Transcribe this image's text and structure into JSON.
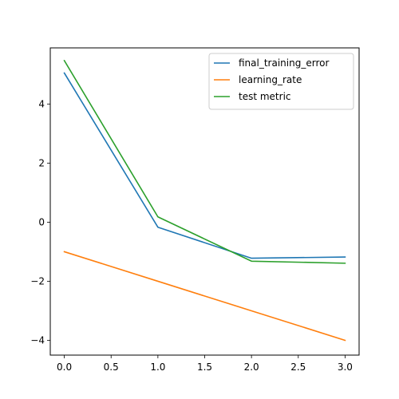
{
  "chart_data": {
    "type": "line",
    "title": "",
    "xlabel": "",
    "ylabel": "",
    "x": [
      0.0,
      1.0,
      2.0,
      3.0
    ],
    "xlim": [
      -0.15,
      3.15
    ],
    "ylim": [
      -4.5,
      5.9
    ],
    "xticks": [
      0.0,
      0.5,
      1.0,
      1.5,
      2.0,
      2.5,
      3.0
    ],
    "xtick_labels": [
      "0.0",
      "0.5",
      "1.0",
      "1.5",
      "2.0",
      "2.5",
      "3.0"
    ],
    "yticks": [
      -4,
      -2,
      0,
      2,
      4
    ],
    "ytick_labels": [
      "−4",
      "−2",
      "0",
      "2",
      "4"
    ],
    "grid": false,
    "legend_position": "top-right",
    "series": [
      {
        "name": "final_training_error",
        "color": "#1f77b4",
        "values": [
          5.05,
          -0.17,
          -1.22,
          -1.18
        ]
      },
      {
        "name": "learning_rate",
        "color": "#ff7f0e",
        "values": [
          -1.0,
          -2.0,
          -3.0,
          -4.0
        ]
      },
      {
        "name": "test metric",
        "color": "#2ca02c",
        "values": [
          5.47,
          0.18,
          -1.32,
          -1.39
        ]
      }
    ]
  }
}
